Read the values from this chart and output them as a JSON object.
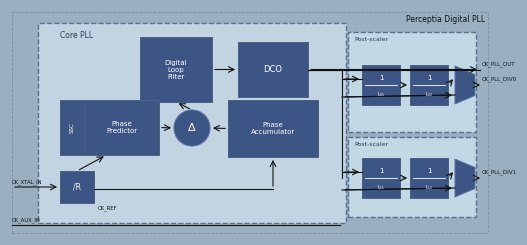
{
  "title": "Perceptia Digital PLL",
  "bg_outer": "#9aafc0",
  "bg_core_pll": "#c2d4e2",
  "bg_post_scaler": "#c2d8e5",
  "block_color": "#3d5585",
  "block_edge": "#5570a0",
  "arrow_color": "#111111",
  "text_color_light": "#ffffff",
  "text_color_dark": "#111111",
  "core_pll_label": "Core PLL",
  "post_scaler_label": "Post-scaler",
  "signal_labels": {
    "ck_pll_out": "CK_PLL_OUT",
    "ck_pll_div0": "CK_PLL_DIV0",
    "ck_pll_div1": "CK_PLL_DIV1",
    "ck_xtal_in": "CK_XTAL_IN",
    "ck_aux_in": "CK_AUX_IN",
    "ck_ref": "CK_REF"
  }
}
